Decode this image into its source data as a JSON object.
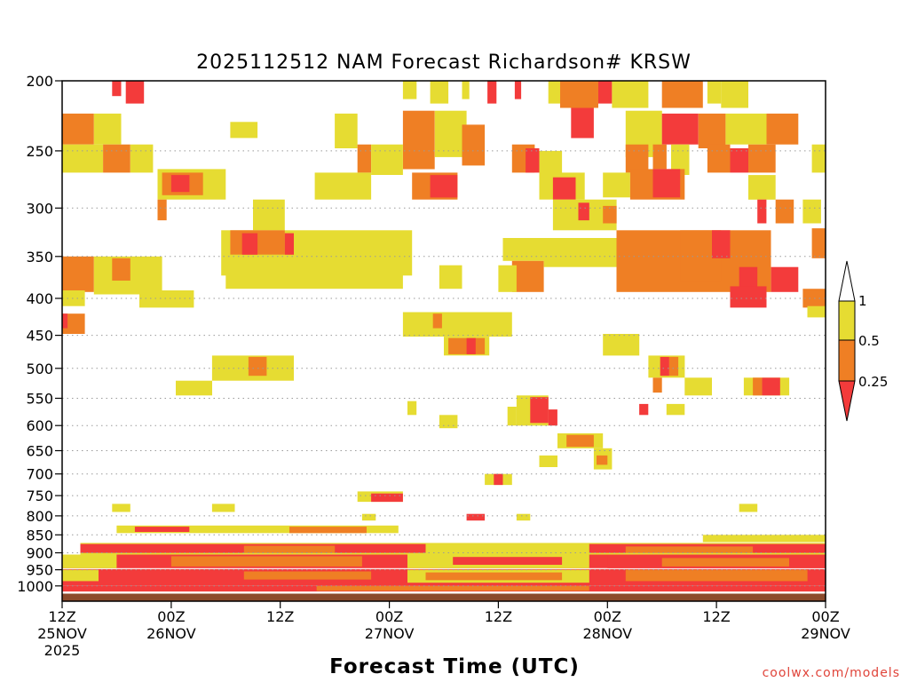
{
  "chart_data": {
    "type": "heatmap",
    "title": "2025112512 NAM Forecast Richardson# KRSW",
    "xlabel": "Forecast Time (UTC)",
    "x_tick_labels": [
      {
        "hour": 0,
        "lines": [
          "12Z",
          "25NOV",
          "2025"
        ]
      },
      {
        "hour": 12,
        "lines": [
          "00Z",
          "26NOV"
        ]
      },
      {
        "hour": 24,
        "lines": [
          "12Z"
        ]
      },
      {
        "hour": 36,
        "lines": [
          "00Z",
          "27NOV"
        ]
      },
      {
        "hour": 48,
        "lines": [
          "12Z"
        ]
      },
      {
        "hour": 60,
        "lines": [
          "00Z",
          "28NOV"
        ]
      },
      {
        "hour": 72,
        "lines": [
          "12Z"
        ]
      },
      {
        "hour": 84,
        "lines": [
          "00Z",
          "29NOV"
        ]
      }
    ],
    "xlim_hours": [
      0,
      84
    ],
    "y_ticks": [
      200,
      250,
      300,
      350,
      400,
      450,
      500,
      550,
      600,
      650,
      700,
      750,
      800,
      850,
      900,
      950,
      1000
    ],
    "ylim_hpa": [
      200,
      1050
    ],
    "y_scale": "log-pressure",
    "grid": "dotted horizontal lines at pressure levels",
    "legend": {
      "placement": "right",
      "labels": [
        "1",
        "0.5",
        "0.25"
      ],
      "bins": [
        {
          "range": "< 0.25",
          "color": "#f33b3b"
        },
        {
          "range": "0.25 - 0.5",
          "color": "#ef7f24"
        },
        {
          "range": "0.5 - 1",
          "color": "#e6dc32"
        },
        {
          "range": "> 1",
          "color": "#ffffff"
        }
      ]
    },
    "colors": {
      "low": "#f33b3b",
      "mid": "#ef7f24",
      "high": "#e6dc32",
      "ground": "#8b4a2b"
    },
    "cells": [
      {
        "t0": 5.5,
        "t1": 6.5,
        "p0": 200,
        "p1": 210,
        "c": "low"
      },
      {
        "t0": 7.0,
        "t1": 9.0,
        "p0": 200,
        "p1": 215,
        "c": "low"
      },
      {
        "t0": 37.5,
        "t1": 39.0,
        "p0": 200,
        "p1": 212,
        "c": "high"
      },
      {
        "t0": 40.5,
        "t1": 42.5,
        "p0": 200,
        "p1": 215,
        "c": "high"
      },
      {
        "t0": 44.0,
        "t1": 44.8,
        "p0": 200,
        "p1": 212,
        "c": "high"
      },
      {
        "t0": 46.8,
        "t1": 47.8,
        "p0": 200,
        "p1": 215,
        "c": "low"
      },
      {
        "t0": 49.8,
        "t1": 50.5,
        "p0": 200,
        "p1": 212,
        "c": "low"
      },
      {
        "t0": 53.5,
        "t1": 55.0,
        "p0": 200,
        "p1": 215,
        "c": "high"
      },
      {
        "t0": 54.8,
        "t1": 59.0,
        "p0": 200,
        "p1": 218,
        "c": "mid"
      },
      {
        "t0": 59.0,
        "t1": 60.5,
        "p0": 200,
        "p1": 215,
        "c": "low"
      },
      {
        "t0": 60.5,
        "t1": 64.5,
        "p0": 200,
        "p1": 218,
        "c": "high"
      },
      {
        "t0": 66.0,
        "t1": 70.5,
        "p0": 200,
        "p1": 218,
        "c": "mid"
      },
      {
        "t0": 71.0,
        "t1": 72.5,
        "p0": 200,
        "p1": 215,
        "c": "high"
      },
      {
        "t0": 72.5,
        "t1": 75.5,
        "p0": 200,
        "p1": 218,
        "c": "high"
      },
      {
        "t0": 0.0,
        "t1": 3.5,
        "p0": 222,
        "p1": 245,
        "c": "mid"
      },
      {
        "t0": 3.5,
        "t1": 6.5,
        "p0": 222,
        "p1": 245,
        "c": "high"
      },
      {
        "t0": 18.5,
        "t1": 21.5,
        "p0": 228,
        "p1": 240,
        "c": "high"
      },
      {
        "t0": 30.0,
        "t1": 32.5,
        "p0": 222,
        "p1": 248,
        "c": "high"
      },
      {
        "t0": 37.5,
        "t1": 41.0,
        "p0": 220,
        "p1": 265,
        "c": "mid"
      },
      {
        "t0": 41.0,
        "t1": 44.5,
        "p0": 220,
        "p1": 255,
        "c": "high"
      },
      {
        "t0": 44.0,
        "t1": 46.5,
        "p0": 230,
        "p1": 262,
        "c": "mid"
      },
      {
        "t0": 56.0,
        "t1": 58.5,
        "p0": 218,
        "p1": 240,
        "c": "low"
      },
      {
        "t0": 62.0,
        "t1": 66.0,
        "p0": 220,
        "p1": 255,
        "c": "high"
      },
      {
        "t0": 66.0,
        "t1": 70.0,
        "p0": 222,
        "p1": 245,
        "c": "low"
      },
      {
        "t0": 70.0,
        "t1": 73.0,
        "p0": 222,
        "p1": 248,
        "c": "mid"
      },
      {
        "t0": 73.0,
        "t1": 77.5,
        "p0": 222,
        "p1": 245,
        "c": "high"
      },
      {
        "t0": 77.5,
        "t1": 81.0,
        "p0": 222,
        "p1": 245,
        "c": "mid"
      },
      {
        "t0": 0.0,
        "t1": 4.5,
        "p0": 245,
        "p1": 268,
        "c": "high"
      },
      {
        "t0": 4.5,
        "t1": 7.5,
        "p0": 245,
        "p1": 268,
        "c": "mid"
      },
      {
        "t0": 7.5,
        "t1": 10.0,
        "p0": 245,
        "p1": 268,
        "c": "high"
      },
      {
        "t0": 32.5,
        "t1": 34.0,
        "p0": 245,
        "p1": 268,
        "c": "mid"
      },
      {
        "t0": 34.0,
        "t1": 37.5,
        "p0": 245,
        "p1": 270,
        "c": "high"
      },
      {
        "t0": 49.5,
        "t1": 52.0,
        "p0": 245,
        "p1": 268,
        "c": "mid"
      },
      {
        "t0": 51.0,
        "t1": 52.5,
        "p0": 248,
        "p1": 268,
        "c": "low"
      },
      {
        "t0": 52.5,
        "t1": 55.0,
        "p0": 250,
        "p1": 270,
        "c": "high"
      },
      {
        "t0": 62.0,
        "t1": 64.5,
        "p0": 245,
        "p1": 268,
        "c": "mid"
      },
      {
        "t0": 65.0,
        "t1": 66.5,
        "p0": 245,
        "p1": 265,
        "c": "mid"
      },
      {
        "t0": 67.0,
        "t1": 69.0,
        "p0": 245,
        "p1": 270,
        "c": "high"
      },
      {
        "t0": 71.0,
        "t1": 73.5,
        "p0": 245,
        "p1": 268,
        "c": "mid"
      },
      {
        "t0": 73.5,
        "t1": 75.5,
        "p0": 248,
        "p1": 268,
        "c": "low"
      },
      {
        "t0": 75.5,
        "t1": 78.5,
        "p0": 245,
        "p1": 268,
        "c": "mid"
      },
      {
        "t0": 82.5,
        "t1": 84.0,
        "p0": 245,
        "p1": 268,
        "c": "high"
      },
      {
        "t0": 10.5,
        "t1": 18.0,
        "p0": 265,
        "p1": 292,
        "c": "high"
      },
      {
        "t0": 11.0,
        "t1": 15.5,
        "p0": 268,
        "p1": 288,
        "c": "mid"
      },
      {
        "t0": 12.0,
        "t1": 14.0,
        "p0": 270,
        "p1": 285,
        "c": "low"
      },
      {
        "t0": 27.8,
        "t1": 34.0,
        "p0": 268,
        "p1": 292,
        "c": "high"
      },
      {
        "t0": 38.5,
        "t1": 43.5,
        "p0": 268,
        "p1": 292,
        "c": "mid"
      },
      {
        "t0": 40.5,
        "t1": 43.5,
        "p0": 270,
        "p1": 290,
        "c": "low"
      },
      {
        "t0": 52.5,
        "t1": 57.5,
        "p0": 268,
        "p1": 292,
        "c": "high"
      },
      {
        "t0": 54.0,
        "t1": 56.5,
        "p0": 272,
        "p1": 292,
        "c": "low"
      },
      {
        "t0": 59.5,
        "t1": 62.5,
        "p0": 268,
        "p1": 290,
        "c": "high"
      },
      {
        "t0": 62.5,
        "t1": 68.5,
        "p0": 265,
        "p1": 292,
        "c": "mid"
      },
      {
        "t0": 65.0,
        "t1": 68.0,
        "p0": 265,
        "p1": 290,
        "c": "low"
      },
      {
        "t0": 75.5,
        "t1": 78.5,
        "p0": 270,
        "p1": 292,
        "c": "high"
      },
      {
        "t0": 10.5,
        "t1": 11.5,
        "p0": 292,
        "p1": 312,
        "c": "mid"
      },
      {
        "t0": 21.0,
        "t1": 24.5,
        "p0": 292,
        "p1": 322,
        "c": "high"
      },
      {
        "t0": 54.0,
        "t1": 61.0,
        "p0": 292,
        "p1": 322,
        "c": "high"
      },
      {
        "t0": 56.8,
        "t1": 58.0,
        "p0": 295,
        "p1": 312,
        "c": "low"
      },
      {
        "t0": 59.5,
        "t1": 61.0,
        "p0": 298,
        "p1": 315,
        "c": "mid"
      },
      {
        "t0": 76.5,
        "t1": 77.5,
        "p0": 292,
        "p1": 315,
        "c": "low"
      },
      {
        "t0": 78.5,
        "t1": 80.5,
        "p0": 292,
        "p1": 315,
        "c": "mid"
      },
      {
        "t0": 81.5,
        "t1": 83.5,
        "p0": 292,
        "p1": 315,
        "c": "high"
      },
      {
        "t0": 0.0,
        "t1": 3.5,
        "p0": 350,
        "p1": 392,
        "c": "mid"
      },
      {
        "t0": 3.5,
        "t1": 11.0,
        "p0": 350,
        "p1": 395,
        "c": "high"
      },
      {
        "t0": 5.5,
        "t1": 7.5,
        "p0": 352,
        "p1": 378,
        "c": "mid"
      },
      {
        "t0": 8.5,
        "t1": 14.5,
        "p0": 390,
        "p1": 412,
        "c": "high"
      },
      {
        "t0": 0.0,
        "t1": 2.5,
        "p0": 390,
        "p1": 410,
        "c": "high"
      },
      {
        "t0": 17.5,
        "t1": 38.5,
        "p0": 322,
        "p1": 372,
        "c": "high"
      },
      {
        "t0": 18.5,
        "t1": 24.5,
        "p0": 322,
        "p1": 348,
        "c": "mid"
      },
      {
        "t0": 19.8,
        "t1": 21.5,
        "p0": 325,
        "p1": 348,
        "c": "low"
      },
      {
        "t0": 24.5,
        "t1": 25.5,
        "p0": 325,
        "p1": 348,
        "c": "low"
      },
      {
        "t0": 18.0,
        "t1": 37.5,
        "p0": 360,
        "p1": 388,
        "c": "high"
      },
      {
        "t0": 41.5,
        "t1": 44.0,
        "p0": 360,
        "p1": 388,
        "c": "high"
      },
      {
        "t0": 48.5,
        "t1": 54.0,
        "p0": 330,
        "p1": 355,
        "c": "high"
      },
      {
        "t0": 49.5,
        "t1": 53.0,
        "p0": 355,
        "p1": 392,
        "c": "mid"
      },
      {
        "t0": 48.0,
        "t1": 50.0,
        "p0": 360,
        "p1": 392,
        "c": "high"
      },
      {
        "t0": 53.0,
        "t1": 61.0,
        "p0": 330,
        "p1": 362,
        "c": "high"
      },
      {
        "t0": 61.0,
        "t1": 78.0,
        "p0": 322,
        "p1": 392,
        "c": "mid"
      },
      {
        "t0": 68.0,
        "t1": 72.5,
        "p0": 322,
        "p1": 380,
        "c": "mid"
      },
      {
        "t0": 71.5,
        "t1": 73.5,
        "p0": 322,
        "p1": 352,
        "c": "low"
      },
      {
        "t0": 74.5,
        "t1": 76.5,
        "p0": 362,
        "p1": 392,
        "c": "low"
      },
      {
        "t0": 78.0,
        "t1": 81.0,
        "p0": 362,
        "p1": 392,
        "c": "low"
      },
      {
        "t0": 82.5,
        "t1": 84.0,
        "p0": 320,
        "p1": 352,
        "c": "mid"
      },
      {
        "t0": 81.5,
        "t1": 84.0,
        "p0": 388,
        "p1": 412,
        "c": "mid"
      },
      {
        "t0": 82.0,
        "t1": 84.0,
        "p0": 410,
        "p1": 425,
        "c": "high"
      },
      {
        "t0": 73.5,
        "t1": 77.5,
        "p0": 385,
        "p1": 412,
        "c": "low"
      },
      {
        "t0": 0.0,
        "t1": 2.5,
        "p0": 420,
        "p1": 448,
        "c": "mid"
      },
      {
        "t0": 0.0,
        "t1": 0.6,
        "p0": 420,
        "p1": 440,
        "c": "low"
      },
      {
        "t0": 37.5,
        "t1": 49.5,
        "p0": 418,
        "p1": 452,
        "c": "high"
      },
      {
        "t0": 40.8,
        "t1": 41.8,
        "p0": 420,
        "p1": 440,
        "c": "mid"
      },
      {
        "t0": 42.0,
        "t1": 47.0,
        "p0": 452,
        "p1": 480,
        "c": "high"
      },
      {
        "t0": 42.5,
        "t1": 46.5,
        "p0": 454,
        "p1": 478,
        "c": "mid"
      },
      {
        "t0": 44.5,
        "t1": 45.5,
        "p0": 454,
        "p1": 478,
        "c": "low"
      },
      {
        "t0": 59.5,
        "t1": 63.5,
        "p0": 448,
        "p1": 480,
        "c": "high"
      },
      {
        "t0": 16.5,
        "t1": 25.5,
        "p0": 480,
        "p1": 520,
        "c": "high"
      },
      {
        "t0": 20.5,
        "t1": 22.5,
        "p0": 482,
        "p1": 512,
        "c": "mid"
      },
      {
        "t0": 12.5,
        "t1": 16.5,
        "p0": 520,
        "p1": 545,
        "c": "high"
      },
      {
        "t0": 64.5,
        "t1": 68.5,
        "p0": 480,
        "p1": 515,
        "c": "high"
      },
      {
        "t0": 65.8,
        "t1": 66.8,
        "p0": 482,
        "p1": 512,
        "c": "low"
      },
      {
        "t0": 66.8,
        "t1": 67.8,
        "p0": 482,
        "p1": 512,
        "c": "mid"
      },
      {
        "t0": 65.0,
        "t1": 66.0,
        "p0": 515,
        "p1": 540,
        "c": "mid"
      },
      {
        "t0": 68.5,
        "t1": 71.5,
        "p0": 515,
        "p1": 545,
        "c": "high"
      },
      {
        "t0": 75.0,
        "t1": 80.0,
        "p0": 515,
        "p1": 545,
        "c": "high"
      },
      {
        "t0": 77.0,
        "t1": 79.0,
        "p0": 515,
        "p1": 545,
        "c": "low"
      },
      {
        "t0": 76.0,
        "t1": 77.0,
        "p0": 515,
        "p1": 545,
        "c": "mid"
      },
      {
        "t0": 50.0,
        "t1": 53.5,
        "p0": 545,
        "p1": 600,
        "c": "high"
      },
      {
        "t0": 51.5,
        "t1": 53.5,
        "p0": 548,
        "p1": 595,
        "c": "low"
      },
      {
        "t0": 49.0,
        "t1": 50.0,
        "p0": 565,
        "p1": 600,
        "c": "high"
      },
      {
        "t0": 53.5,
        "t1": 54.5,
        "p0": 570,
        "p1": 600,
        "c": "low"
      },
      {
        "t0": 41.5,
        "t1": 43.5,
        "p0": 580,
        "p1": 605,
        "c": "high"
      },
      {
        "t0": 38.0,
        "t1": 39.0,
        "p0": 555,
        "p1": 580,
        "c": "high"
      },
      {
        "t0": 63.5,
        "t1": 64.5,
        "p0": 560,
        "p1": 580,
        "c": "low"
      },
      {
        "t0": 66.5,
        "t1": 68.5,
        "p0": 560,
        "p1": 580,
        "c": "high"
      },
      {
        "t0": 54.5,
        "t1": 59.5,
        "p0": 615,
        "p1": 645,
        "c": "high"
      },
      {
        "t0": 55.5,
        "t1": 58.5,
        "p0": 618,
        "p1": 642,
        "c": "mid"
      },
      {
        "t0": 52.5,
        "t1": 54.5,
        "p0": 660,
        "p1": 685,
        "c": "high"
      },
      {
        "t0": 58.5,
        "t1": 60.5,
        "p0": 645,
        "p1": 690,
        "c": "high"
      },
      {
        "t0": 58.8,
        "t1": 60.0,
        "p0": 660,
        "p1": 680,
        "c": "mid"
      },
      {
        "t0": 46.5,
        "t1": 49.5,
        "p0": 700,
        "p1": 725,
        "c": "high"
      },
      {
        "t0": 47.5,
        "t1": 48.5,
        "p0": 700,
        "p1": 725,
        "c": "low"
      },
      {
        "t0": 32.5,
        "t1": 37.5,
        "p0": 740,
        "p1": 765,
        "c": "high"
      },
      {
        "t0": 34.0,
        "t1": 37.5,
        "p0": 745,
        "p1": 765,
        "c": "low"
      },
      {
        "t0": 5.5,
        "t1": 7.5,
        "p0": 770,
        "p1": 790,
        "c": "high"
      },
      {
        "t0": 16.5,
        "t1": 19.0,
        "p0": 770,
        "p1": 790,
        "c": "high"
      },
      {
        "t0": 74.5,
        "t1": 76.5,
        "p0": 770,
        "p1": 790,
        "c": "high"
      },
      {
        "t0": 33.0,
        "t1": 34.5,
        "p0": 795,
        "p1": 812,
        "c": "high"
      },
      {
        "t0": 44.5,
        "t1": 46.5,
        "p0": 795,
        "p1": 812,
        "c": "low"
      },
      {
        "t0": 50.0,
        "t1": 51.5,
        "p0": 795,
        "p1": 812,
        "c": "high"
      },
      {
        "t0": 6.0,
        "t1": 37.0,
        "p0": 825,
        "p1": 845,
        "c": "high"
      },
      {
        "t0": 8.0,
        "t1": 14.0,
        "p0": 828,
        "p1": 842,
        "c": "low"
      },
      {
        "t0": 25.0,
        "t1": 33.5,
        "p0": 828,
        "p1": 845,
        "c": "mid"
      },
      {
        "t0": 70.5,
        "t1": 84.0,
        "p0": 850,
        "p1": 870,
        "c": "high"
      },
      {
        "t0": 2.0,
        "t1": 84.0,
        "p0": 872,
        "p1": 905,
        "c": "high"
      },
      {
        "t0": 2.0,
        "t1": 40.0,
        "p0": 875,
        "p1": 900,
        "c": "low"
      },
      {
        "t0": 20.0,
        "t1": 30.0,
        "p0": 880,
        "p1": 900,
        "c": "mid"
      },
      {
        "t0": 58.0,
        "t1": 84.0,
        "p0": 875,
        "p1": 900,
        "c": "low"
      },
      {
        "t0": 62.0,
        "t1": 76.0,
        "p0": 882,
        "p1": 900,
        "c": "mid"
      },
      {
        "t0": 0.0,
        "t1": 84.0,
        "p0": 905,
        "p1": 945,
        "c": "low"
      },
      {
        "t0": 0.0,
        "t1": 6.0,
        "p0": 905,
        "p1": 945,
        "c": "high"
      },
      {
        "t0": 12.0,
        "t1": 33.0,
        "p0": 910,
        "p1": 940,
        "c": "mid"
      },
      {
        "t0": 38.0,
        "t1": 58.0,
        "p0": 905,
        "p1": 945,
        "c": "high"
      },
      {
        "t0": 43.0,
        "t1": 55.0,
        "p0": 912,
        "p1": 935,
        "c": "low"
      },
      {
        "t0": 60.0,
        "t1": 84.0,
        "p0": 905,
        "p1": 945,
        "c": "low"
      },
      {
        "t0": 66.0,
        "t1": 80.0,
        "p0": 915,
        "p1": 940,
        "c": "mid"
      },
      {
        "t0": 0.0,
        "t1": 84.0,
        "p0": 948,
        "p1": 1000,
        "c": "low"
      },
      {
        "t0": 0.0,
        "t1": 4.0,
        "p0": 950,
        "p1": 985,
        "c": "high"
      },
      {
        "t0": 20.0,
        "t1": 34.0,
        "p0": 955,
        "p1": 980,
        "c": "mid"
      },
      {
        "t0": 38.0,
        "t1": 58.0,
        "p0": 950,
        "p1": 990,
        "c": "high"
      },
      {
        "t0": 40.0,
        "t1": 55.0,
        "p0": 958,
        "p1": 982,
        "c": "mid"
      },
      {
        "t0": 62.0,
        "t1": 82.0,
        "p0": 950,
        "p1": 985,
        "c": "mid"
      },
      {
        "t0": 0.0,
        "t1": 84.0,
        "p0": 1000,
        "p1": 1018,
        "c": "low"
      },
      {
        "t0": 28.0,
        "t1": 58.0,
        "p0": 1000,
        "p1": 1016,
        "c": "mid"
      }
    ]
  },
  "credit": "coolwx.com/models"
}
